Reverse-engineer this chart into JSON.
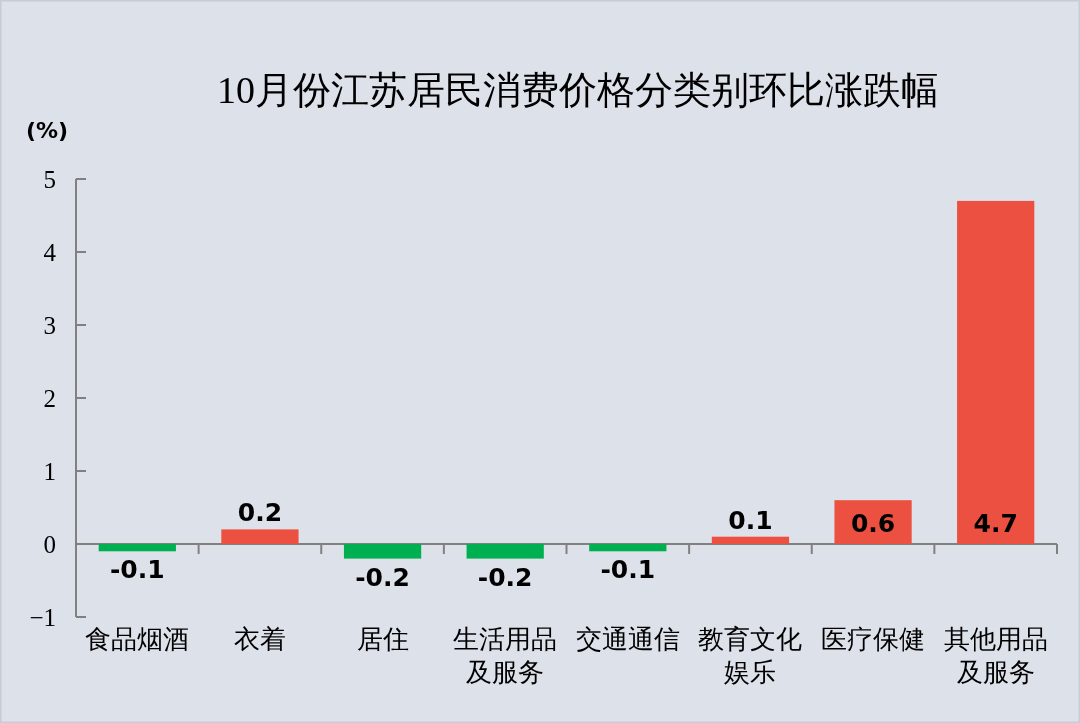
{
  "chart_data": {
    "type": "bar",
    "title": "10月份江苏居民消费价格分类别环比涨跌幅",
    "ylabel": "(%)",
    "categories": [
      "食品烟酒",
      "衣着",
      "居住",
      "生活用品及服务",
      "交通通信",
      "教育文化娱乐",
      "医疗保健",
      "其他用品及服务"
    ],
    "values": [
      -0.1,
      0.2,
      -0.2,
      -0.2,
      -0.1,
      0.1,
      0.6,
      4.7
    ],
    "colors": [
      "#00b050",
      "#ec5040",
      "#00b050",
      "#00b050",
      "#00b050",
      "#ec5040",
      "#ec5040",
      "#ec5040"
    ],
    "ylim": [
      -1,
      5
    ],
    "yticks": [
      {
        "value": -1,
        "label": "−1"
      },
      0,
      1,
      2,
      3,
      4,
      5
    ],
    "data_labels": true
  }
}
